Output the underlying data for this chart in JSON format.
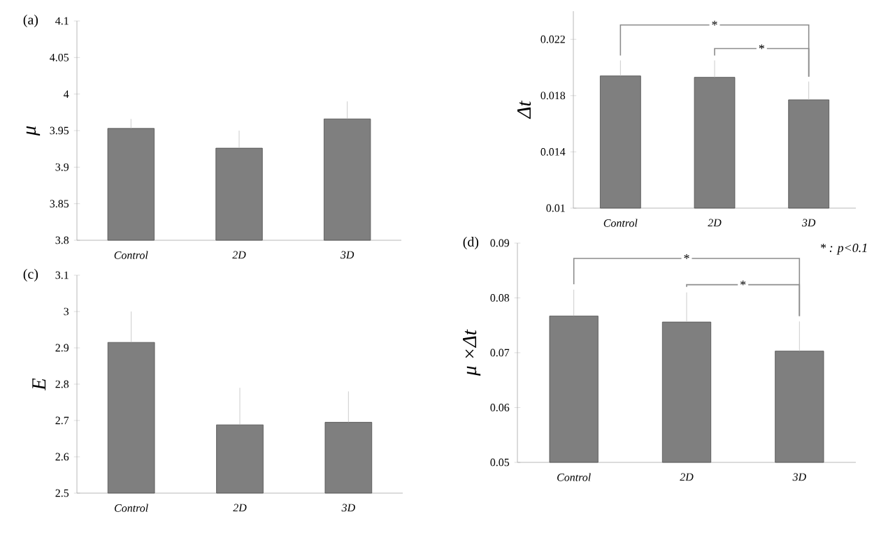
{
  "chart_data": [
    {
      "type": "bar",
      "title": "(a)",
      "ylabel": "μ",
      "categories": [
        "Control",
        "2D",
        "3D"
      ],
      "values": [
        3.953,
        3.926,
        3.966
      ],
      "errors": [
        [
          3.953,
          3.966
        ],
        [
          3.926,
          3.95
        ],
        [
          3.966,
          3.99
        ]
      ],
      "color": "#7f7f7f",
      "ylim": [
        3.8,
        4.1
      ],
      "yticks": [
        3.8,
        3.85,
        3.9,
        3.95,
        4,
        4.05,
        4.1
      ],
      "grid": false
    },
    {
      "type": "bar",
      "ylabel": "Δt",
      "categories": [
        "Control",
        "2D",
        "3D"
      ],
      "values": [
        0.0194,
        0.0193,
        0.0177
      ],
      "errors": [
        [
          0.0194,
          0.0205
        ],
        [
          0.0193,
          0.0205
        ],
        [
          0.0177,
          0.019
        ]
      ],
      "color": "#7f7f7f",
      "ylim": [
        0.01,
        0.024
      ],
      "yticks": [
        0.01,
        0.014,
        0.018,
        0.022
      ],
      "grid": false,
      "annotations": [
        "*",
        "*"
      ]
    },
    {
      "type": "bar",
      "title": "(c)",
      "ylabel": "E",
      "categories": [
        "Control",
        "2D",
        "3D"
      ],
      "values": [
        2.915,
        2.688,
        2.695
      ],
      "errors": [
        [
          2.915,
          3.0
        ],
        [
          2.688,
          2.79
        ],
        [
          2.695,
          2.78
        ]
      ],
      "color": "#7f7f7f",
      "ylim": [
        2.5,
        3.1
      ],
      "yticks": [
        2.5,
        2.6,
        2.7,
        2.8,
        2.9,
        3,
        3.1
      ],
      "grid": false
    },
    {
      "type": "bar",
      "title": "(d)",
      "ylabel": "μ ×Δt",
      "categories": [
        "Control",
        "2D",
        "3D"
      ],
      "values": [
        0.0767,
        0.0756,
        0.0703
      ],
      "errors": [
        [
          0.0767,
          0.0815
        ],
        [
          0.0756,
          0.081
        ],
        [
          0.0703,
          0.0757
        ]
      ],
      "color": "#7f7f7f",
      "ylim": [
        0.05,
        0.09
      ],
      "yticks": [
        0.05,
        0.06,
        0.07,
        0.08,
        0.09
      ],
      "grid": false,
      "annotations": [
        "*",
        "*",
        "* : p<0.1"
      ]
    }
  ]
}
